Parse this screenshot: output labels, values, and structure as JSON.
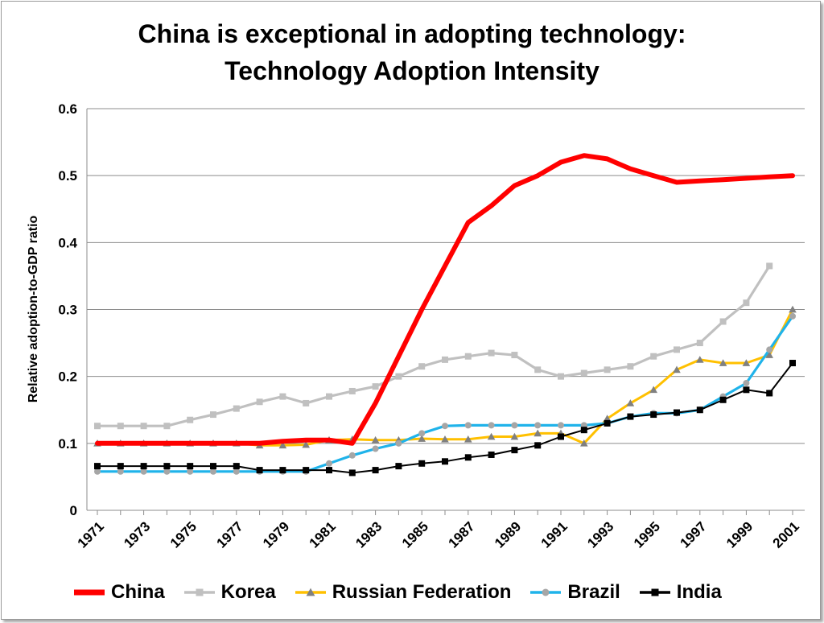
{
  "chart_data": {
    "type": "line",
    "title": "China is exceptional in adopting technology:",
    "subtitle": "Technology Adoption Intensity",
    "xlabel": "",
    "ylabel": "Relative adoption-to-GDP ratio",
    "ylim": [
      0,
      0.6
    ],
    "yticks": [
      "0",
      "0.1",
      "0.2",
      "0.3",
      "0.4",
      "0.5",
      "0.6"
    ],
    "x": [
      1971,
      1972,
      1973,
      1974,
      1975,
      1976,
      1977,
      1978,
      1979,
      1980,
      1981,
      1982,
      1983,
      1984,
      1985,
      1986,
      1987,
      1988,
      1989,
      1990,
      1991,
      1992,
      1993,
      1994,
      1995,
      1996,
      1997,
      1998,
      1999,
      2000,
      2001
    ],
    "xticks": [
      "1971",
      "1973",
      "1975",
      "1977",
      "1979",
      "1981",
      "1983",
      "1985",
      "1987",
      "1989",
      "1991",
      "1993",
      "1995",
      "1997",
      "1999",
      "2001"
    ],
    "grid": true,
    "legend_position": "bottom",
    "series": [
      {
        "name": "China",
        "color": "#ff0000",
        "marker": "none",
        "values": [
          0.1,
          0.1,
          0.1,
          0.1,
          0.1,
          0.1,
          0.1,
          0.1,
          0.103,
          0.105,
          0.105,
          0.1,
          0.16,
          0.23,
          0.3,
          0.365,
          0.43,
          0.455,
          0.485,
          0.5,
          0.52,
          0.53,
          0.525,
          0.51,
          0.5,
          0.49,
          0.492,
          0.494,
          0.496,
          0.498,
          0.5
        ]
      },
      {
        "name": "Korea",
        "color": "#c0c0c0",
        "marker": "square",
        "values": [
          0.126,
          0.126,
          0.126,
          0.126,
          0.135,
          0.143,
          0.152,
          0.162,
          0.17,
          0.16,
          0.17,
          0.178,
          0.185,
          0.2,
          0.215,
          0.225,
          0.23,
          0.235,
          0.232,
          0.21,
          0.2,
          0.205,
          0.21,
          0.215,
          0.23,
          0.24,
          0.25,
          0.282,
          0.31,
          0.365,
          null
        ]
      },
      {
        "name": "Russian Federation",
        "color": "#ffc000",
        "marker": "triangle",
        "values": [
          0.1,
          0.1,
          0.1,
          0.1,
          0.1,
          0.1,
          0.1,
          0.097,
          0.097,
          0.098,
          0.105,
          0.106,
          0.105,
          0.105,
          0.107,
          0.106,
          0.106,
          0.11,
          0.11,
          0.115,
          0.115,
          0.1,
          0.137,
          0.16,
          0.18,
          0.21,
          0.225,
          0.22,
          0.22,
          0.232,
          0.3
        ]
      },
      {
        "name": "Brazil",
        "color": "#1fb3ea",
        "marker": "circle",
        "values": [
          0.058,
          0.058,
          0.058,
          0.058,
          0.058,
          0.058,
          0.058,
          0.058,
          0.058,
          0.058,
          0.07,
          0.082,
          0.092,
          0.1,
          0.115,
          0.126,
          0.127,
          0.127,
          0.127,
          0.127,
          0.127,
          0.127,
          0.13,
          0.14,
          0.145,
          0.145,
          0.15,
          0.17,
          0.19,
          0.24,
          0.29
        ]
      },
      {
        "name": "India",
        "color": "#000000",
        "marker": "square",
        "values": [
          0.066,
          0.066,
          0.066,
          0.066,
          0.066,
          0.066,
          0.066,
          0.06,
          0.06,
          0.06,
          0.06,
          0.056,
          0.06,
          0.066,
          0.07,
          0.073,
          0.079,
          0.083,
          0.09,
          0.097,
          0.11,
          0.12,
          0.13,
          0.14,
          0.143,
          0.146,
          0.15,
          0.165,
          0.18,
          0.175,
          0.22
        ]
      }
    ]
  }
}
